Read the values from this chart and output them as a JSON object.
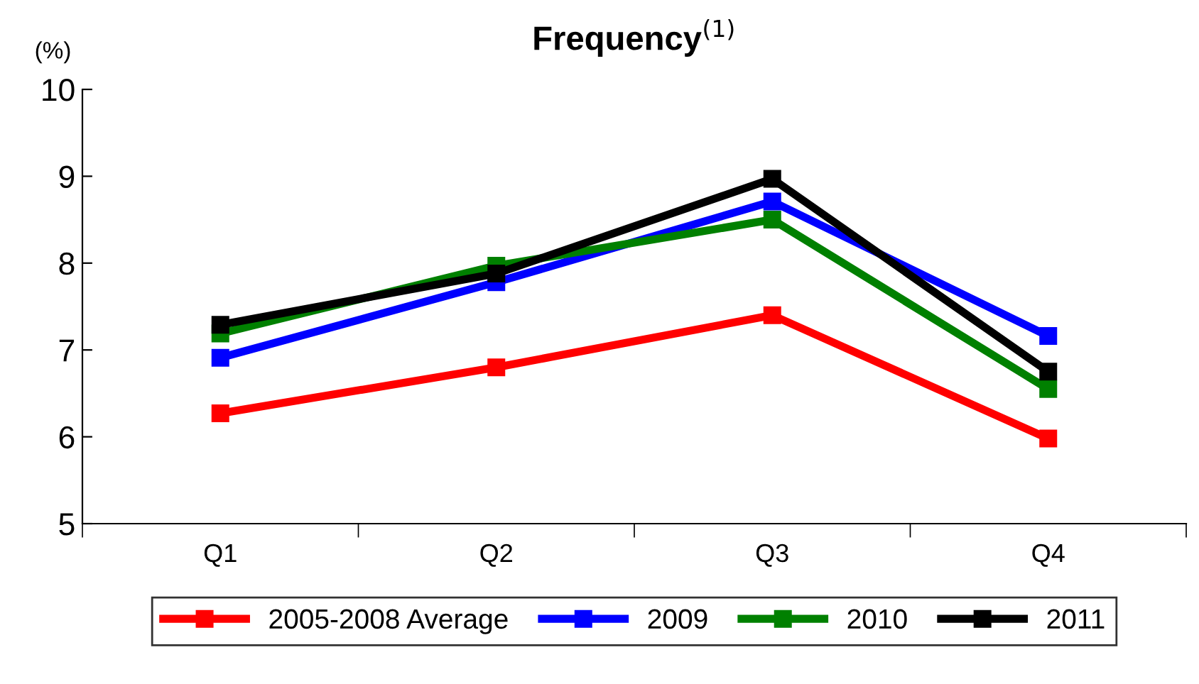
{
  "chart_data": {
    "type": "line",
    "title": "Frequency$^{(1)}$",
    "ylabel": "(%)",
    "categories": [
      "Q1",
      "Q2",
      "Q3",
      "Q4"
    ],
    "series": [
      {
        "name": "2005-2008 Average",
        "color": "#ff0000",
        "values": [
          6.27,
          6.8,
          7.4,
          5.98
        ]
      },
      {
        "name": "2009",
        "color": "#0000ff",
        "values": [
          6.91,
          7.78,
          8.71,
          7.16
        ]
      },
      {
        "name": "2010",
        "color": "#008000",
        "values": [
          7.19,
          7.97,
          8.5,
          6.55
        ]
      },
      {
        "name": "2011",
        "color": "#000000",
        "values": [
          7.29,
          7.88,
          8.97,
          6.75
        ]
      }
    ],
    "ylim": [
      5,
      10
    ],
    "yticks": [
      5,
      6,
      7,
      8,
      9,
      10
    ],
    "grid": false,
    "legend": "bottom",
    "marker": "square",
    "line_style": "solid"
  }
}
